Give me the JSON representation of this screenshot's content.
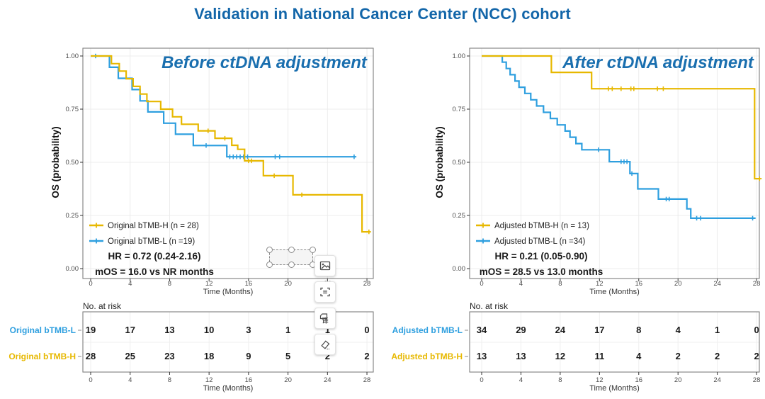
{
  "title": "Validation in National Cancer Center (NCC) cohort",
  "colors": {
    "gold": "#E7B800",
    "blue": "#2E9FDF",
    "title_blue": "#1366A9",
    "panel_title_blue": "#1A6FAF",
    "text_dark": "#1a1a1a",
    "tick_text": "#4d4d4d",
    "grid": "#ececec",
    "panel_border": "#7f7f7f"
  },
  "overlay": {
    "translate_glyph": "译"
  },
  "chart_data": [
    {
      "type": "line",
      "subtitle": "Before ctDNA adjustment",
      "xlabel": "Time (Months)",
      "ylabel": "OS (probability)",
      "xticks": [
        0,
        4,
        8,
        12,
        16,
        20,
        24,
        28
      ],
      "yticks": [
        "1.00",
        "0.75",
        "0.50",
        "0.25",
        "0.00"
      ],
      "ytick_values": [
        1.0,
        0.75,
        0.5,
        0.25,
        0.0
      ],
      "xlim": [
        0,
        29
      ],
      "ylim": [
        0,
        1
      ],
      "hr_text": "HR = 0.72 (0.24-2.16)",
      "mos_text": "mOS = 16.0 vs NR months",
      "series": [
        {
          "name": "Original bTMB-H (n = 28)",
          "color_key": "gold",
          "steps": [
            [
              0,
              1.0
            ],
            [
              2.1,
              0.964
            ],
            [
              2.9,
              0.929
            ],
            [
              3.6,
              0.893
            ],
            [
              4.3,
              0.857
            ],
            [
              5.0,
              0.821
            ],
            [
              5.7,
              0.786
            ],
            [
              7.1,
              0.75
            ],
            [
              8.3,
              0.714
            ],
            [
              9.2,
              0.679
            ],
            [
              10.9,
              0.648
            ],
            [
              12.6,
              0.613
            ],
            [
              14.3,
              0.58
            ],
            [
              14.9,
              0.561
            ],
            [
              15.6,
              0.507
            ],
            [
              17.5,
              0.437
            ],
            [
              20.5,
              0.347
            ],
            [
              27.5,
              0.173
            ],
            [
              28.3,
              0.173
            ]
          ],
          "censors": [
            [
              11.9,
              0.648
            ],
            [
              13.6,
              0.613
            ],
            [
              16.0,
              0.507
            ],
            [
              16.3,
              0.507
            ],
            [
              18.6,
              0.437
            ],
            [
              21.4,
              0.347
            ],
            [
              28.2,
              0.173
            ]
          ]
        },
        {
          "name": "Original bTMB-L (n =19)",
          "color_key": "blue",
          "steps": [
            [
              0,
              1.0
            ],
            [
              1.9,
              0.947
            ],
            [
              2.8,
              0.895
            ],
            [
              4.2,
              0.842
            ],
            [
              5.0,
              0.789
            ],
            [
              5.8,
              0.737
            ],
            [
              7.4,
              0.684
            ],
            [
              8.6,
              0.632
            ],
            [
              10.4,
              0.579
            ],
            [
              13.8,
              0.526
            ],
            [
              26.9,
              0.526
            ]
          ],
          "censors": [
            [
              0.5,
              1.0
            ],
            [
              11.7,
              0.579
            ],
            [
              14.1,
              0.526
            ],
            [
              14.45,
              0.526
            ],
            [
              14.8,
              0.526
            ],
            [
              15.15,
              0.526
            ],
            [
              15.5,
              0.526
            ],
            [
              15.9,
              0.526
            ],
            [
              18.7,
              0.526
            ],
            [
              19.15,
              0.526
            ],
            [
              26.7,
              0.526
            ]
          ]
        }
      ],
      "risk_table": {
        "header": "No. at risk",
        "xlabel": "Time (Months)",
        "rows": [
          {
            "label": "Original bTMB-L",
            "color_key": "blue",
            "values": [
              19,
              17,
              13,
              10,
              3,
              1,
              1,
              0
            ]
          },
          {
            "label": "Original bTMB-H",
            "color_key": "gold",
            "values": [
              28,
              25,
              23,
              18,
              9,
              5,
              2,
              2
            ]
          }
        ]
      }
    },
    {
      "type": "line",
      "subtitle": "After ctDNA adjustment",
      "xlabel": "Time (Months)",
      "ylabel": "OS (probability)",
      "xticks": [
        0,
        4,
        8,
        12,
        16,
        20,
        24,
        28
      ],
      "yticks": [
        "1.00",
        "0.75",
        "0.50",
        "0.25",
        "0.00"
      ],
      "ytick_values": [
        1.0,
        0.75,
        0.5,
        0.25,
        0.0
      ],
      "xlim": [
        0,
        29
      ],
      "ylim": [
        0,
        1
      ],
      "hr_text": "HR = 0.21 (0.05-0.90)",
      "mos_text": "mOS = 28.5 vs 13.0 months",
      "series": [
        {
          "name": "Adjusted bTMB-H (n = 13)",
          "color_key": "gold",
          "steps": [
            [
              0,
              1.0
            ],
            [
              7.1,
              0.923
            ],
            [
              11.2,
              0.846
            ],
            [
              27.8,
              0.423
            ],
            [
              28.4,
              0.423
            ]
          ],
          "censors": [
            [
              12.9,
              0.846
            ],
            [
              13.3,
              0.846
            ],
            [
              14.2,
              0.846
            ],
            [
              15.2,
              0.846
            ],
            [
              15.5,
              0.846
            ],
            [
              17.9,
              0.846
            ],
            [
              18.5,
              0.846
            ],
            [
              28.3,
              0.423
            ]
          ]
        },
        {
          "name": "Adjusted bTMB-L (n =34)",
          "color_key": "blue",
          "steps": [
            [
              0,
              1.0
            ],
            [
              2.1,
              0.971
            ],
            [
              2.5,
              0.941
            ],
            [
              2.9,
              0.912
            ],
            [
              3.4,
              0.882
            ],
            [
              3.8,
              0.853
            ],
            [
              4.4,
              0.824
            ],
            [
              5.0,
              0.794
            ],
            [
              5.6,
              0.765
            ],
            [
              6.3,
              0.735
            ],
            [
              7.0,
              0.706
            ],
            [
              7.7,
              0.676
            ],
            [
              8.5,
              0.647
            ],
            [
              9.0,
              0.618
            ],
            [
              9.6,
              0.588
            ],
            [
              10.2,
              0.559
            ],
            [
              13.0,
              0.503
            ],
            [
              15.1,
              0.447
            ],
            [
              15.9,
              0.375
            ],
            [
              18.0,
              0.327
            ],
            [
              20.9,
              0.281
            ],
            [
              21.3,
              0.237
            ],
            [
              27.9,
              0.237
            ]
          ],
          "censors": [
            [
              11.9,
              0.559
            ],
            [
              14.2,
              0.503
            ],
            [
              14.5,
              0.503
            ],
            [
              14.8,
              0.503
            ],
            [
              15.3,
              0.447
            ],
            [
              18.8,
              0.327
            ],
            [
              19.1,
              0.327
            ],
            [
              21.9,
              0.237
            ],
            [
              22.3,
              0.237
            ],
            [
              27.6,
              0.237
            ]
          ]
        }
      ],
      "risk_table": {
        "header": "No. at risk",
        "xlabel": "Time (Months)",
        "rows": [
          {
            "label": "Adjusted bTMB-L",
            "color_key": "blue",
            "values": [
              34,
              29,
              24,
              17,
              8,
              4,
              1,
              0
            ]
          },
          {
            "label": "Adjusted bTMB-H",
            "color_key": "gold",
            "values": [
              13,
              13,
              12,
              11,
              4,
              2,
              2,
              2
            ]
          }
        ]
      }
    }
  ]
}
